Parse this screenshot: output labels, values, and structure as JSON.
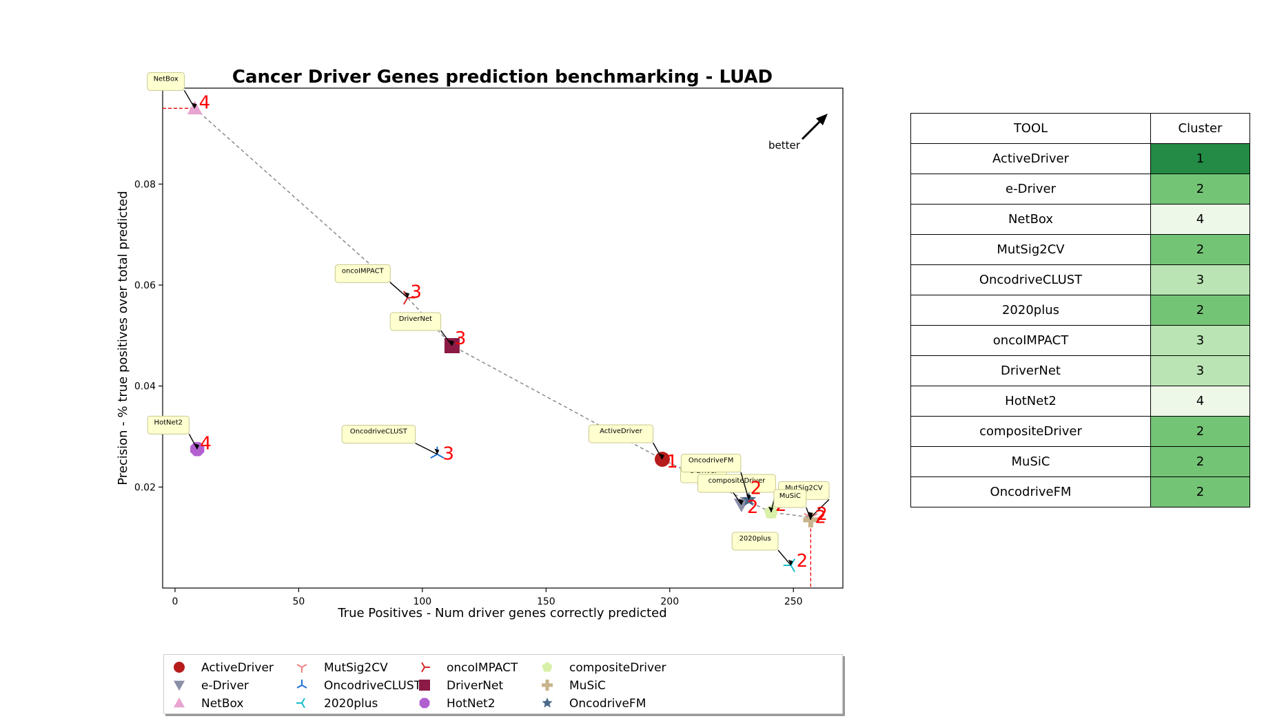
{
  "chart_data": {
    "type": "scatter",
    "title": "Cancer Driver Genes prediction benchmarking - LUAD",
    "xlabel": "True Positives - Num driver genes correctly predicted",
    "ylabel": "Precision - % true positives over total predicted",
    "xlim": [
      -5,
      270
    ],
    "ylim": [
      0.0,
      0.099
    ],
    "xticks": [
      0,
      50,
      100,
      150,
      200,
      250
    ],
    "yticks": [
      0.02,
      0.04,
      0.06,
      0.08
    ],
    "annotation": "better",
    "grid": false,
    "legend_position": "bottom",
    "series": [
      {
        "name": "ActiveDriver",
        "x": 197,
        "y": 0.0255,
        "cluster": "1",
        "marker": "circle",
        "color": "#b71c1c"
      },
      {
        "name": "e-Driver",
        "x": 229,
        "y": 0.0165,
        "cluster": "2",
        "marker": "triangle-down",
        "color": "#8a8fa8"
      },
      {
        "name": "NetBox",
        "x": 8,
        "y": 0.095,
        "cluster": "4",
        "marker": "triangle-up",
        "color": "#e8a4d0"
      },
      {
        "name": "MutSig2CV",
        "x": 257,
        "y": 0.014,
        "cluster": "2",
        "marker": "tri-down",
        "color": "#f08080"
      },
      {
        "name": "OncodriveCLUST",
        "x": 106,
        "y": 0.0265,
        "cluster": "3",
        "marker": "tri-up",
        "color": "#1f6fd6"
      },
      {
        "name": "2020plus",
        "x": 249,
        "y": 0.0045,
        "cluster": "2",
        "marker": "tri-left",
        "color": "#17becf"
      },
      {
        "name": "oncoIMPACT",
        "x": 94,
        "y": 0.0575,
        "cluster": "3",
        "marker": "tri-right",
        "color": "#d62728"
      },
      {
        "name": "DriverNet",
        "x": 112,
        "y": 0.048,
        "cluster": "3",
        "marker": "square",
        "color": "#8b1a45"
      },
      {
        "name": "HotNet2",
        "x": 9,
        "y": 0.0275,
        "cluster": "4",
        "marker": "octagon",
        "color": "#b25fd0"
      },
      {
        "name": "compositeDriver",
        "x": 241,
        "y": 0.015,
        "cluster": "2",
        "marker": "pentagon",
        "color": "#d8f0a8"
      },
      {
        "name": "MuSiC",
        "x": 257,
        "y": 0.0135,
        "cluster": "2",
        "marker": "plus",
        "color": "#c8b48c"
      },
      {
        "name": "OncodriveFM",
        "x": 232,
        "y": 0.0175,
        "cluster": "2",
        "marker": "star",
        "color": "#4a6a8a"
      }
    ],
    "pareto_front": [
      [
        8,
        0.095
      ],
      [
        94,
        0.0575
      ],
      [
        112,
        0.048
      ],
      [
        197,
        0.0255
      ],
      [
        241,
        0.015
      ],
      [
        257,
        0.014
      ]
    ],
    "dashed_guides": {
      "y": 0.095,
      "x": 257
    }
  },
  "table": {
    "headers": [
      "TOOL",
      "Cluster"
    ],
    "rows": [
      {
        "tool": "ActiveDriver",
        "cluster": "1",
        "color": "#238b45"
      },
      {
        "tool": "e-Driver",
        "cluster": "2",
        "color": "#74c476"
      },
      {
        "tool": "NetBox",
        "cluster": "4",
        "color": "#edf8e9"
      },
      {
        "tool": "MutSig2CV",
        "cluster": "2",
        "color": "#74c476"
      },
      {
        "tool": "OncodriveCLUST",
        "cluster": "3",
        "color": "#bae4b3"
      },
      {
        "tool": "2020plus",
        "cluster": "2",
        "color": "#74c476"
      },
      {
        "tool": "oncoIMPACT",
        "cluster": "3",
        "color": "#bae4b3"
      },
      {
        "tool": "DriverNet",
        "cluster": "3",
        "color": "#bae4b3"
      },
      {
        "tool": "HotNet2",
        "cluster": "4",
        "color": "#edf8e9"
      },
      {
        "tool": "compositeDriver",
        "cluster": "2",
        "color": "#74c476"
      },
      {
        "tool": "MuSiC",
        "cluster": "2",
        "color": "#74c476"
      },
      {
        "tool": "OncodriveFM",
        "cluster": "2",
        "color": "#74c476"
      }
    ]
  }
}
